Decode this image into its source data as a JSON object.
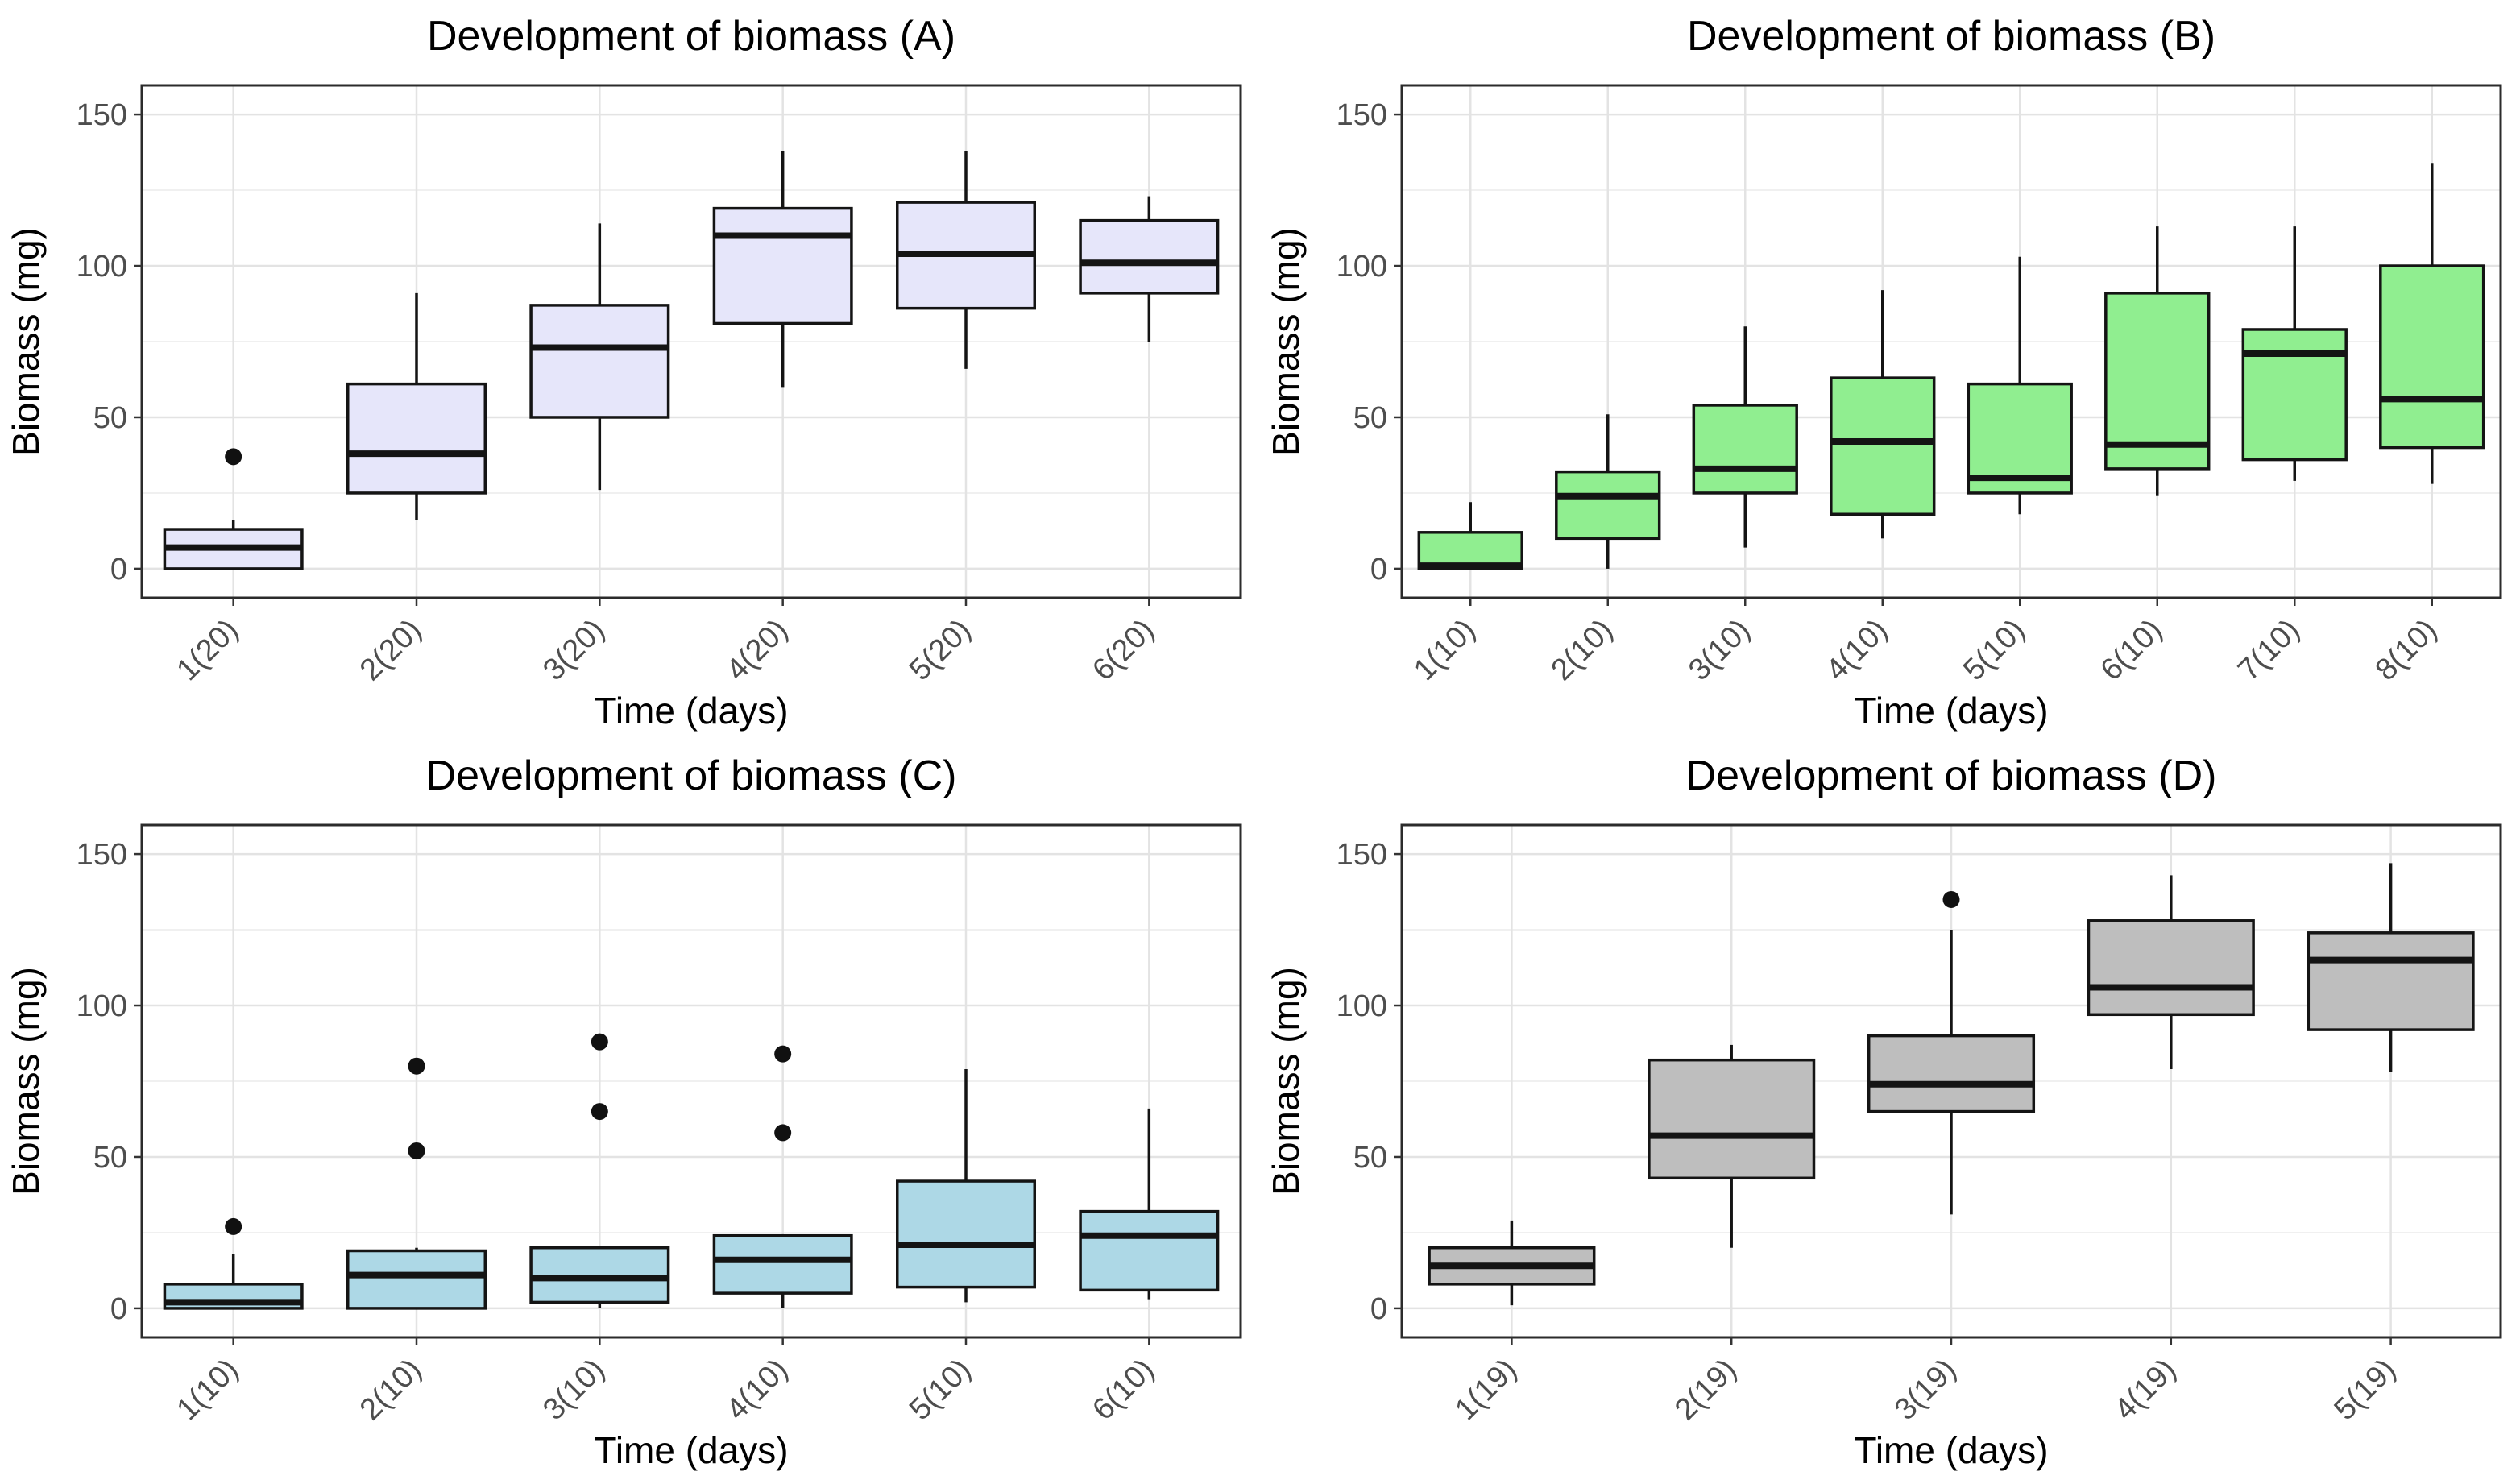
{
  "figure": {
    "background": "#ffffff",
    "layout": "2x2-grid-of-boxplots",
    "panels": [
      "A",
      "B",
      "C",
      "D"
    ]
  },
  "style": {
    "grid_major_color": "#e3e3e3",
    "grid_minor_color": "#f0f0f0",
    "panel_border_color": "#2b2b2b",
    "tick_mark_color": "#343434",
    "tick_label_color": "#4d4d4d",
    "box_outline_color": "#141414",
    "outlier_color": "#111111"
  },
  "chart_data": [
    {
      "type": "boxplot",
      "panel": "A",
      "title": "Development of biomass (A)",
      "xlabel": "Time (days)",
      "ylabel": "Biomass (mg)",
      "fill": "#e6e6fa",
      "ylim": [
        0,
        150
      ],
      "yticks_major": [
        0,
        50,
        100,
        150
      ],
      "yticks_minor": [
        25,
        75,
        125
      ],
      "grid": true,
      "legend": "none",
      "categories": [
        "1(20)",
        "2(20)",
        "3(20)",
        "4(20)",
        "5(20)",
        "6(20)"
      ],
      "boxes": [
        {
          "category": "1(20)",
          "whisker_low": 0,
          "q1": 0,
          "median": 7,
          "q3": 13,
          "whisker_high": 16,
          "outliers": [
            37
          ]
        },
        {
          "category": "2(20)",
          "whisker_low": 16,
          "q1": 25,
          "median": 38,
          "q3": 61,
          "whisker_high": 91,
          "outliers": []
        },
        {
          "category": "3(20)",
          "whisker_low": 26,
          "q1": 50,
          "median": 73,
          "q3": 87,
          "whisker_high": 114,
          "outliers": []
        },
        {
          "category": "4(20)",
          "whisker_low": 60,
          "q1": 81,
          "median": 110,
          "q3": 119,
          "whisker_high": 138,
          "outliers": []
        },
        {
          "category": "5(20)",
          "whisker_low": 66,
          "q1": 86,
          "median": 104,
          "q3": 121,
          "whisker_high": 138,
          "outliers": []
        },
        {
          "category": "6(20)",
          "whisker_low": 75,
          "q1": 91,
          "median": 101,
          "q3": 115,
          "whisker_high": 123,
          "outliers": []
        }
      ]
    },
    {
      "type": "boxplot",
      "panel": "B",
      "title": "Development of biomass (B)",
      "xlabel": "Time (days)",
      "ylabel": "Biomass (mg)",
      "fill": "#90ee90",
      "ylim": [
        0,
        150
      ],
      "yticks_major": [
        0,
        50,
        100,
        150
      ],
      "yticks_minor": [
        25,
        75,
        125
      ],
      "grid": true,
      "legend": "none",
      "categories": [
        "1(10)",
        "2(10)",
        "3(10)",
        "4(10)",
        "5(10)",
        "6(10)",
        "7(10)",
        "8(10)"
      ],
      "boxes": [
        {
          "category": "1(10)",
          "whisker_low": 0,
          "q1": 0,
          "median": 1,
          "q3": 12,
          "whisker_high": 22,
          "outliers": []
        },
        {
          "category": "2(10)",
          "whisker_low": 0,
          "q1": 10,
          "median": 24,
          "q3": 32,
          "whisker_high": 51,
          "outliers": []
        },
        {
          "category": "3(10)",
          "whisker_low": 7,
          "q1": 25,
          "median": 33,
          "q3": 54,
          "whisker_high": 80,
          "outliers": []
        },
        {
          "category": "4(10)",
          "whisker_low": 10,
          "q1": 18,
          "median": 42,
          "q3": 63,
          "whisker_high": 92,
          "outliers": []
        },
        {
          "category": "5(10)",
          "whisker_low": 18,
          "q1": 25,
          "median": 30,
          "q3": 61,
          "whisker_high": 103,
          "outliers": []
        },
        {
          "category": "6(10)",
          "whisker_low": 24,
          "q1": 33,
          "median": 41,
          "q3": 91,
          "whisker_high": 113,
          "outliers": []
        },
        {
          "category": "7(10)",
          "whisker_low": 29,
          "q1": 36,
          "median": 71,
          "q3": 79,
          "whisker_high": 113,
          "outliers": []
        },
        {
          "category": "8(10)",
          "whisker_low": 28,
          "q1": 40,
          "median": 56,
          "q3": 100,
          "whisker_high": 134,
          "outliers": []
        }
      ]
    },
    {
      "type": "boxplot",
      "panel": "C",
      "title": "Development of biomass (C)",
      "xlabel": "Time (days)",
      "ylabel": "Biomass (mg)",
      "fill": "#add8e6",
      "ylim": [
        0,
        150
      ],
      "yticks_major": [
        0,
        50,
        100,
        150
      ],
      "yticks_minor": [
        25,
        75,
        125
      ],
      "grid": true,
      "legend": "none",
      "categories": [
        "1(10)",
        "2(10)",
        "3(10)",
        "4(10)",
        "5(10)",
        "6(10)"
      ],
      "boxes": [
        {
          "category": "1(10)",
          "whisker_low": 0,
          "q1": 0,
          "median": 2,
          "q3": 8,
          "whisker_high": 18,
          "outliers": [
            27
          ]
        },
        {
          "category": "2(10)",
          "whisker_low": 0,
          "q1": 0,
          "median": 11,
          "q3": 19,
          "whisker_high": 20,
          "outliers": [
            52,
            80
          ]
        },
        {
          "category": "3(10)",
          "whisker_low": 0,
          "q1": 2,
          "median": 10,
          "q3": 20,
          "whisker_high": 20,
          "outliers": [
            65,
            88
          ]
        },
        {
          "category": "4(10)",
          "whisker_low": 0,
          "q1": 5,
          "median": 16,
          "q3": 24,
          "whisker_high": 24,
          "outliers": [
            58,
            84
          ]
        },
        {
          "category": "5(10)",
          "whisker_low": 2,
          "q1": 7,
          "median": 21,
          "q3": 42,
          "whisker_high": 79,
          "outliers": []
        },
        {
          "category": "6(10)",
          "whisker_low": 3,
          "q1": 6,
          "median": 24,
          "q3": 32,
          "whisker_high": 66,
          "outliers": []
        }
      ]
    },
    {
      "type": "boxplot",
      "panel": "D",
      "title": "Development of biomass (D)",
      "xlabel": "Time (days)",
      "ylabel": "Biomass (mg)",
      "fill": "#bebebe",
      "ylim": [
        0,
        150
      ],
      "yticks_major": [
        0,
        50,
        100,
        150
      ],
      "yticks_minor": [
        25,
        75,
        125
      ],
      "grid": true,
      "legend": "none",
      "categories": [
        "1(19)",
        "2(19)",
        "3(19)",
        "4(19)",
        "5(19)"
      ],
      "boxes": [
        {
          "category": "1(19)",
          "whisker_low": 1,
          "q1": 8,
          "median": 14,
          "q3": 20,
          "whisker_high": 29,
          "outliers": []
        },
        {
          "category": "2(19)",
          "whisker_low": 20,
          "q1": 43,
          "median": 57,
          "q3": 82,
          "whisker_high": 87,
          "outliers": []
        },
        {
          "category": "3(19)",
          "whisker_low": 31,
          "q1": 65,
          "median": 74,
          "q3": 90,
          "whisker_high": 125,
          "outliers": [
            135
          ]
        },
        {
          "category": "4(19)",
          "whisker_low": 79,
          "q1": 97,
          "median": 106,
          "q3": 128,
          "whisker_high": 143,
          "outliers": []
        },
        {
          "category": "5(19)",
          "whisker_low": 78,
          "q1": 92,
          "median": 115,
          "q3": 124,
          "whisker_high": 147,
          "outliers": []
        }
      ]
    }
  ]
}
